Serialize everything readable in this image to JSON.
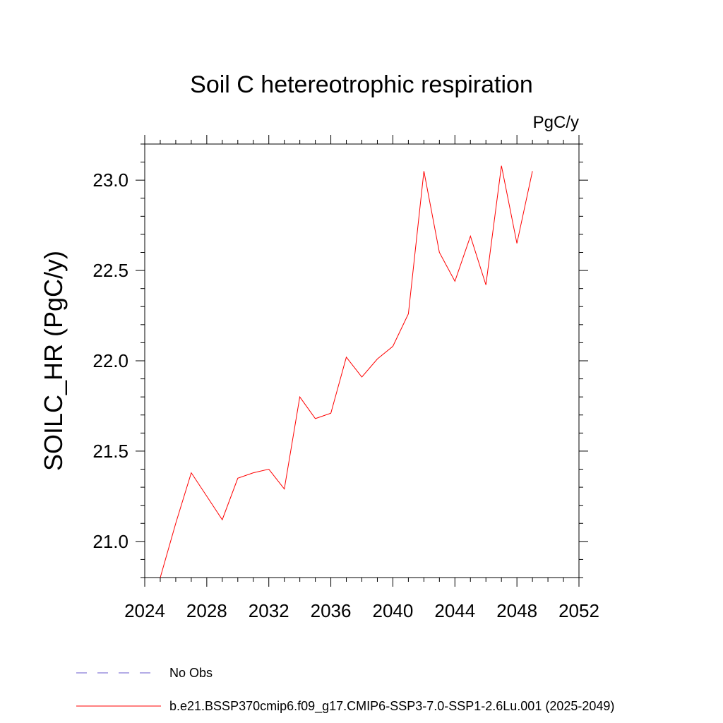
{
  "chart_data": {
    "type": "line",
    "title": "Soil C hetereotrophic respiration",
    "units": "PgC/y",
    "xlabel": "",
    "ylabel": "SOILC_HR  (PgC/y)",
    "xlim": [
      2024,
      2052
    ],
    "ylim": [
      20.8,
      23.2
    ],
    "xticks": [
      2024,
      2028,
      2032,
      2036,
      2040,
      2044,
      2048,
      2052
    ],
    "xtick_labels": [
      "2024",
      "2028",
      "2032",
      "2036",
      "2040",
      "2044",
      "2048",
      "2052"
    ],
    "yticks": [
      21.0,
      21.5,
      22.0,
      22.5,
      23.0
    ],
    "ytick_labels": [
      "21.0",
      "21.5",
      "22.0",
      "22.5",
      "23.0"
    ],
    "grid": false,
    "legend_position": "bottom-left",
    "series": [
      {
        "name": "b.e21.BSSP370cmip6.f09_g17.CMIP6-SSP3-7.0-SSP1-2.6Lu.001 (2025-2049)",
        "color": "#ff0000",
        "style": "solid",
        "x": [
          2025,
          2026,
          2027,
          2028,
          2029,
          2030,
          2031,
          2032,
          2033,
          2034,
          2035,
          2036,
          2037,
          2038,
          2039,
          2040,
          2041,
          2042,
          2043,
          2044,
          2045,
          2046,
          2047,
          2048,
          2049
        ],
        "y": [
          20.8,
          21.1,
          21.38,
          21.25,
          21.12,
          21.35,
          21.38,
          21.4,
          21.29,
          21.8,
          21.68,
          21.71,
          22.02,
          21.91,
          22.01,
          22.08,
          22.26,
          23.05,
          22.6,
          22.44,
          22.69,
          22.42,
          23.08,
          22.65,
          23.05
        ]
      }
    ],
    "legend": [
      {
        "label": "No Obs",
        "color": "#6a5acd",
        "style": "dashed"
      },
      {
        "label": "b.e21.BSSP370cmip6.f09_g17.CMIP6-SSP3-7.0-SSP1-2.6Lu.001 (2025-2049)",
        "color": "#ff0000",
        "style": "solid"
      }
    ]
  }
}
